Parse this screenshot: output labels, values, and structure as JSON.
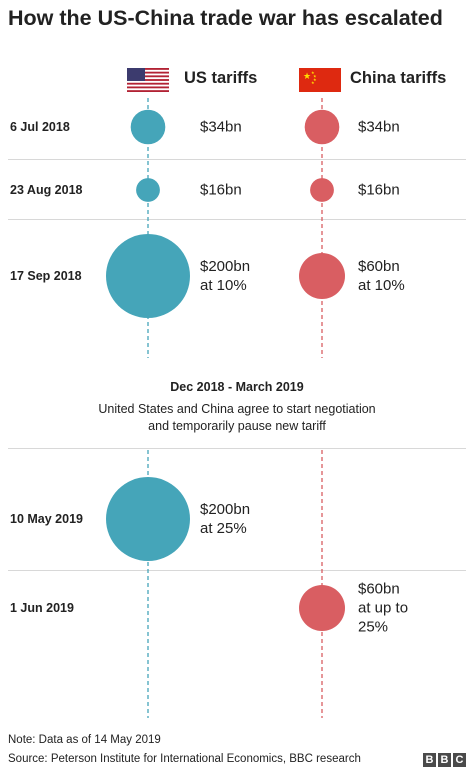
{
  "title": "How the US-China trade war has escalated",
  "columns": {
    "us_label": "US tariffs",
    "china_label": "China tariffs"
  },
  "colors": {
    "us": "#45a5b9",
    "china": "#d95e62",
    "separator": "#d8d8d8",
    "text": "#222222"
  },
  "chart_data": {
    "type": "bubble-timeline",
    "title": "How the US-China trade war has escalated",
    "series": [
      {
        "name": "US tariffs",
        "color": "#45a5b9"
      },
      {
        "name": "China tariffs",
        "color": "#d95e62"
      }
    ],
    "unit": "$bn",
    "events": [
      {
        "date": "6 Jul 2018",
        "us": {
          "value": 34,
          "lines": [
            "$34bn"
          ]
        },
        "china": {
          "value": 34,
          "lines": [
            "$34bn"
          ]
        }
      },
      {
        "date": "23 Aug 2018",
        "us": {
          "value": 16,
          "lines": [
            "$16bn"
          ]
        },
        "china": {
          "value": 16,
          "lines": [
            "$16bn"
          ]
        }
      },
      {
        "date": "17 Sep 2018",
        "us": {
          "value": 200,
          "lines": [
            "$200bn",
            "at 10%"
          ]
        },
        "china": {
          "value": 60,
          "lines": [
            "$60bn",
            "at 10%"
          ]
        }
      },
      {
        "date": "10 May 2019",
        "us": {
          "value": 200,
          "lines": [
            "$200bn",
            "at 25%"
          ]
        },
        "china": null
      },
      {
        "date": "1 Jun 2019",
        "us": null,
        "china": {
          "value": 60,
          "lines": [
            "$60bn",
            "at up to",
            "25%"
          ]
        }
      }
    ],
    "pause": {
      "period": "Dec 2018 - March 2019",
      "text": "United States and China agree to start negotiation and temporarily pause new tariff"
    }
  },
  "footer": {
    "note": "Note: Data as of 14 May 2019",
    "source": "Source: Peterson Institute for International Economics, BBC research",
    "logo": "BBC"
  }
}
